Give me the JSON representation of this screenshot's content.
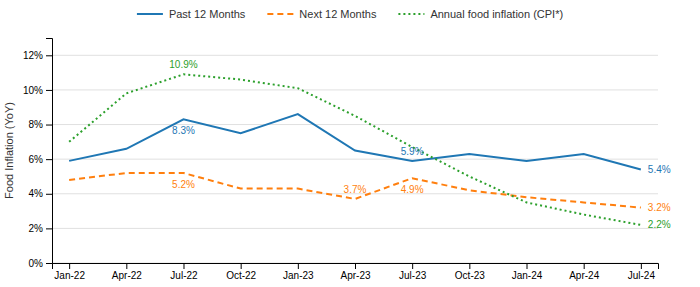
{
  "chart_data": {
    "type": "line",
    "categories": [
      "Jan-22",
      "Apr-22",
      "Jul-22",
      "Oct-22",
      "Jan-23",
      "Apr-23",
      "Jul-23",
      "Oct-23",
      "Jan-24",
      "Apr-24",
      "Jul-24"
    ],
    "series": [
      {
        "name": "Past 12 Months",
        "values": [
          5.9,
          6.6,
          8.3,
          7.5,
          8.6,
          6.5,
          5.9,
          6.3,
          5.9,
          6.3,
          5.4
        ],
        "line_style": "solid"
      },
      {
        "name": "Next 12 Months",
        "values": [
          4.8,
          5.2,
          5.2,
          4.3,
          4.3,
          3.7,
          4.9,
          4.2,
          3.8,
          3.5,
          3.2
        ],
        "line_style": "dashed"
      },
      {
        "name": "Annual food inflation (CPI*)",
        "values": [
          7.0,
          9.8,
          10.9,
          10.6,
          10.1,
          8.5,
          6.7,
          5.0,
          3.5,
          2.8,
          2.2
        ],
        "line_style": "dotted"
      }
    ],
    "ylabel": "Food Inflation (YoY)",
    "ylim": [
      0,
      13
    ],
    "yticks": [
      {
        "value": 0,
        "label": "0%"
      },
      {
        "value": 2,
        "label": "2%"
      },
      {
        "value": 4,
        "label": "4%"
      },
      {
        "value": 6,
        "label": "6%"
      },
      {
        "value": 8,
        "label": "8%"
      },
      {
        "value": 10,
        "label": "10%"
      },
      {
        "value": 12,
        "label": "12%"
      }
    ],
    "grid": true,
    "legend": "top",
    "annotations": [
      {
        "text": "8.3%",
        "x": "Jul-22",
        "y": 8.3
      },
      {
        "text": "5.9%",
        "x": "Jul-23",
        "y": 5.9
      },
      {
        "text": "5.4%",
        "x": "Jul-24",
        "y": 5.4
      },
      {
        "text": "5.2%",
        "x": "Jul-22",
        "y": 5.2
      },
      {
        "text": "4.9%",
        "x": "Jul-23",
        "y": 4.9
      },
      {
        "text": "3.2%",
        "x": "Jul-24",
        "y": 3.2
      },
      {
        "text": "10.9%",
        "x": "Jul-22",
        "y": 10.9
      },
      {
        "text": "3.7%",
        "x": "Apr-23",
        "y": 3.7
      },
      {
        "text": "2.2%",
        "x": "Jul-24",
        "y": 2.2
      }
    ]
  }
}
